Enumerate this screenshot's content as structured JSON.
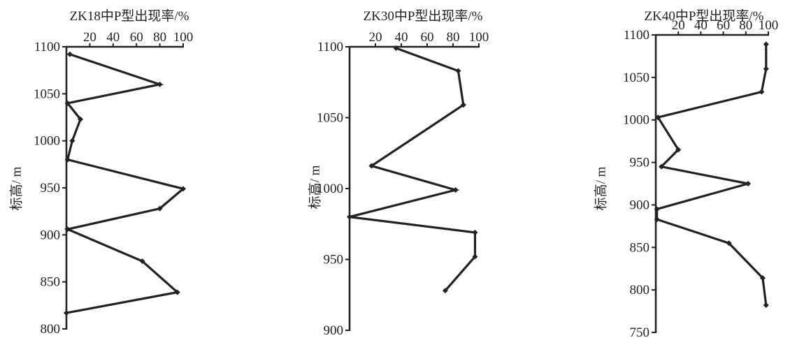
{
  "chart_data": [
    {
      "type": "line",
      "title": "ZK18中P型出现率/%",
      "xlabel": "",
      "ylabel": "标高/ m",
      "xlim": [
        0,
        100
      ],
      "xticks": [
        20,
        40,
        60,
        80,
        100
      ],
      "ylim": [
        800,
        1100
      ],
      "yticks": [
        800,
        850,
        900,
        950,
        1000,
        1050,
        1100
      ],
      "grid": false,
      "series": [
        {
          "x": [
            3,
            80,
            1,
            12,
            5,
            1,
            100,
            80,
            1,
            65,
            95,
            0
          ],
          "y": [
            1092,
            1060,
            1040,
            1023,
            1000,
            980,
            949,
            928,
            906,
            872,
            839,
            817
          ]
        }
      ]
    },
    {
      "type": "line",
      "title": "ZK30中P型出现率/%",
      "xlabel": "",
      "ylabel": "标高/ m",
      "xlim": [
        0,
        100
      ],
      "xticks": [
        20,
        40,
        60,
        80,
        100
      ],
      "ylim": [
        900,
        1100
      ],
      "yticks": [
        900,
        950,
        1000,
        1050,
        1100
      ],
      "grid": false,
      "series": [
        {
          "x": [
            36,
            84,
            88,
            17,
            82,
            0,
            97,
            97,
            74
          ],
          "y": [
            1099,
            1083,
            1059,
            1016,
            999,
            980,
            969,
            952,
            928
          ]
        }
      ]
    },
    {
      "type": "line",
      "title": "ZK40中P型出现率/%",
      "xlabel": "",
      "ylabel": "标高/ m",
      "xlim": [
        0,
        100
      ],
      "xticks": [
        20,
        40,
        60,
        80,
        100
      ],
      "ylim": [
        750,
        1100
      ],
      "yticks": [
        750,
        800,
        850,
        900,
        950,
        1000,
        1050,
        1100
      ],
      "grid": false,
      "series": [
        {
          "x": [
            98,
            98,
            94,
            2,
            20,
            5,
            82,
            1,
            1,
            65,
            95,
            98
          ],
          "y": [
            1089,
            1060,
            1033,
            1003,
            965,
            945,
            925,
            895,
            883,
            855,
            814,
            782
          ]
        }
      ]
    }
  ]
}
